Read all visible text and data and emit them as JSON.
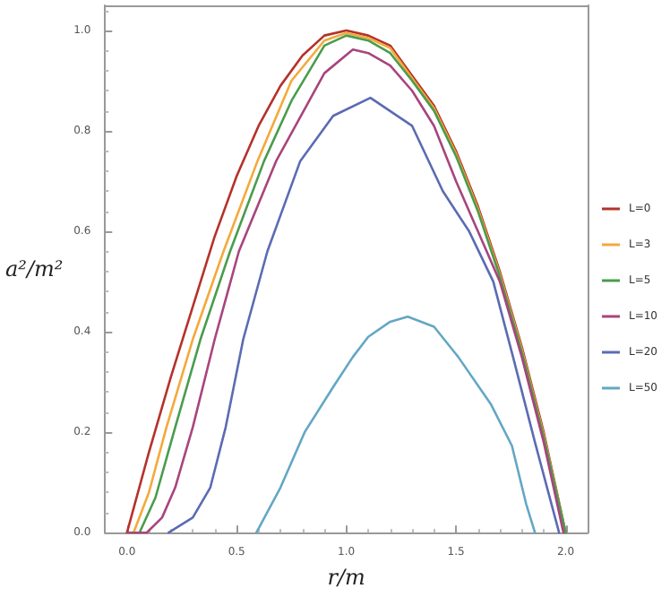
{
  "chart_data": {
    "type": "line",
    "xlabel": "r/m",
    "ylabel": "a²/m²",
    "xlim": [
      -0.1,
      2.1
    ],
    "ylim": [
      0,
      1.05
    ],
    "xticks": [
      {
        "value": 0,
        "label": "0.0"
      },
      {
        "value": 0.5,
        "label": "0.5"
      },
      {
        "value": 1,
        "label": "1.0"
      },
      {
        "value": 1.5,
        "label": "1.5"
      },
      {
        "value": 2,
        "label": "2.0"
      }
    ],
    "yticks": [
      {
        "value": 0,
        "label": "0.0"
      },
      {
        "value": 0.2,
        "label": "0.2"
      },
      {
        "value": 0.4,
        "label": "0.4"
      },
      {
        "value": 0.6,
        "label": "0.6"
      },
      {
        "value": 0.8,
        "label": "0.8"
      },
      {
        "value": 1,
        "label": "1.0"
      }
    ],
    "grid": false,
    "legend": "right",
    "marker": "none",
    "line_style": "solid",
    "series": [
      {
        "name": "L=0",
        "color": "#b5322b",
        "x": [
          0,
          0.1,
          0.2,
          0.3,
          0.4,
          0.5,
          0.6,
          0.7,
          0.8,
          0.9,
          1.0,
          1.1,
          1.2,
          1.3,
          1.4,
          1.5,
          1.6,
          1.7,
          1.8,
          1.9,
          2.0
        ],
        "values": [
          0,
          0.16,
          0.31,
          0.45,
          0.59,
          0.71,
          0.81,
          0.89,
          0.95,
          0.99,
          1.0,
          0.99,
          0.97,
          0.91,
          0.85,
          0.76,
          0.65,
          0.52,
          0.37,
          0.2,
          0
        ]
      },
      {
        "name": "L=3",
        "color": "#f4a93b",
        "x": [
          0,
          0.03,
          0.1,
          0.18,
          0.3,
          0.44,
          0.595,
          0.75,
          0.9,
          1.0,
          1.1,
          1.2,
          1.3,
          1.4,
          1.5,
          1.6,
          1.7,
          1.8,
          1.9,
          2.0
        ],
        "values": [
          0,
          0,
          0.08,
          0.21,
          0.385,
          0.56,
          0.74,
          0.9,
          0.98,
          0.995,
          0.985,
          0.965,
          0.905,
          0.845,
          0.755,
          0.645,
          0.515,
          0.365,
          0.195,
          0
        ]
      },
      {
        "name": "L=5",
        "color": "#4a9c4d",
        "x": [
          0,
          0.057,
          0.13,
          0.22,
          0.335,
          0.47,
          0.625,
          0.75,
          0.9,
          1.0,
          1.1,
          1.2,
          1.3,
          1.4,
          1.5,
          1.6,
          1.7,
          1.8,
          1.9,
          2.0
        ],
        "values": [
          0,
          0,
          0.07,
          0.21,
          0.385,
          0.56,
          0.74,
          0.86,
          0.97,
          0.99,
          0.98,
          0.955,
          0.9,
          0.84,
          0.75,
          0.64,
          0.51,
          0.36,
          0.19,
          0
        ]
      },
      {
        "name": "L=10",
        "color": "#a8457d",
        "x": [
          0,
          0.09,
          0.16,
          0.22,
          0.3,
          0.4,
          0.51,
          0.68,
          0.9,
          1.03,
          1.1,
          1.2,
          1.3,
          1.4,
          1.5,
          1.6,
          1.7,
          1.8,
          1.9,
          1.99
        ],
        "values": [
          0,
          0,
          0.03,
          0.09,
          0.21,
          0.385,
          0.56,
          0.74,
          0.915,
          0.962,
          0.955,
          0.93,
          0.88,
          0.81,
          0.7,
          0.6,
          0.5,
          0.35,
          0.18,
          0
        ]
      },
      {
        "name": "L=20",
        "color": "#5b6bb3",
        "x": [
          0.19,
          0.3,
          0.38,
          0.45,
          0.53,
          0.64,
          0.79,
          0.94,
          1.11,
          1.3,
          1.44,
          1.56,
          1.67,
          1.76,
          1.86,
          1.97
        ],
        "values": [
          0,
          0.03,
          0.09,
          0.21,
          0.385,
          0.56,
          0.74,
          0.83,
          0.866,
          0.81,
          0.68,
          0.6,
          0.5,
          0.35,
          0.18,
          0
        ]
      },
      {
        "name": "L=50",
        "color": "#63a7c5",
        "x": [
          0.59,
          0.7,
          0.81,
          0.94,
          1.03,
          1.1,
          1.2,
          1.28,
          1.4,
          1.51,
          1.66,
          1.755,
          1.82,
          1.86
        ],
        "values": [
          0,
          0.09,
          0.2,
          0.29,
          0.35,
          0.39,
          0.42,
          0.43,
          0.41,
          0.35,
          0.255,
          0.173,
          0.057,
          0
        ]
      }
    ]
  }
}
